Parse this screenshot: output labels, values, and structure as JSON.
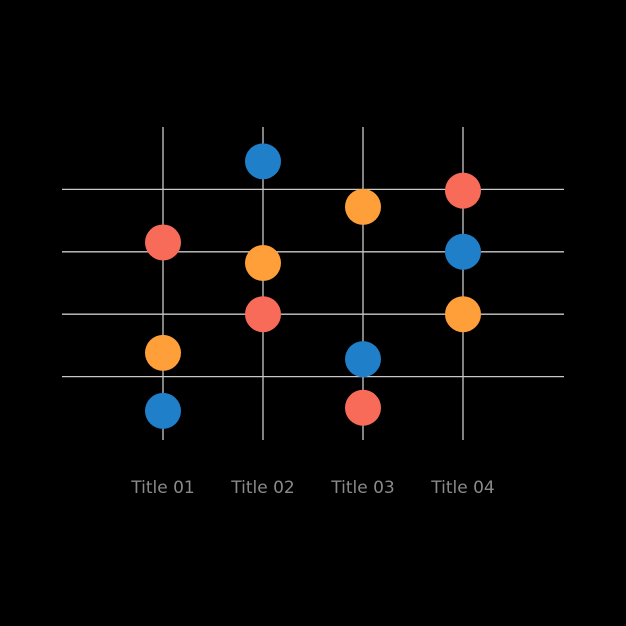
{
  "chart_data": {
    "type": "scatter",
    "title": "",
    "xlabel": "",
    "ylabel": "",
    "categories": [
      "Title 01",
      "Title 02",
      "Title 03",
      "Title 04"
    ],
    "ylim": [
      0,
      5
    ],
    "grid": true,
    "legend": "none",
    "series": [
      {
        "color": "#1f7fc9",
        "values": [
          0.45,
          4.45,
          1.28,
          3.0
        ]
      },
      {
        "color": "#ff9f3a",
        "values": [
          1.38,
          2.82,
          3.72,
          2.0
        ]
      },
      {
        "color": "#f86b59",
        "values": [
          3.15,
          2.0,
          0.5,
          3.98
        ]
      }
    ]
  }
}
